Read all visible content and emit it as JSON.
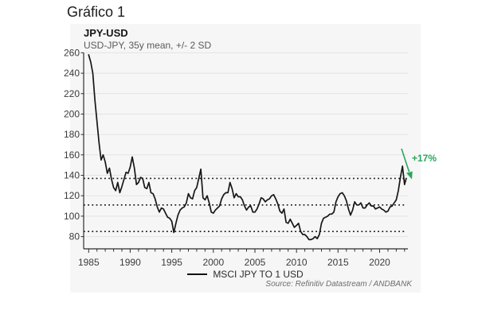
{
  "page_title": "Gráfico 1",
  "chart": {
    "title": "JPY-USD",
    "subtitle": "USD-JPY, 35y mean, +/- 2 SD",
    "legend_label": "MSCI JPY TO 1 USD",
    "source": "Source: Refinitiv Datastream / ANDBANK"
  },
  "chart_data": {
    "type": "line",
    "title": "JPY-USD",
    "subtitle": "USD-JPY, 35y mean, +/- 2 SD",
    "xlabel": "",
    "ylabel": "",
    "xlim": [
      1984.4,
      2023.4
    ],
    "ylim": [
      68,
      265
    ],
    "xticks": [
      1985,
      1990,
      1995,
      2000,
      2005,
      2010,
      2015,
      2020
    ],
    "yticks": [
      80,
      100,
      120,
      140,
      160,
      180,
      200,
      220,
      240,
      260
    ],
    "minor_xtick_start": 1985,
    "minor_xtick_end": 2023,
    "grid": "horizontal",
    "legend_position": "bottom",
    "reference_lines": [
      {
        "label": "+2 SD",
        "value": 137
      },
      {
        "label": "35y mean",
        "value": 111
      },
      {
        "label": "-2 SD",
        "value": 85
      }
    ],
    "annotations": [
      {
        "text": "+17%",
        "x": 2023.2,
        "y": 150,
        "color": "#2aa65c"
      }
    ],
    "series": [
      {
        "name": "MSCI JPY TO 1 USD",
        "color": "#171717",
        "points": [
          [
            1985.0,
            258
          ],
          [
            1985.25,
            251
          ],
          [
            1985.5,
            240
          ],
          [
            1985.75,
            214
          ],
          [
            1986.0,
            193
          ],
          [
            1986.25,
            172
          ],
          [
            1986.5,
            155
          ],
          [
            1986.75,
            160
          ],
          [
            1987.0,
            153
          ],
          [
            1987.25,
            142
          ],
          [
            1987.5,
            147
          ],
          [
            1987.75,
            136
          ],
          [
            1988.0,
            128
          ],
          [
            1988.25,
            125
          ],
          [
            1988.5,
            133
          ],
          [
            1988.75,
            123
          ],
          [
            1989.0,
            129
          ],
          [
            1989.25,
            136
          ],
          [
            1989.5,
            143
          ],
          [
            1989.75,
            142
          ],
          [
            1990.0,
            148
          ],
          [
            1990.25,
            158
          ],
          [
            1990.5,
            147
          ],
          [
            1990.75,
            131
          ],
          [
            1991.0,
            133
          ],
          [
            1991.25,
            138
          ],
          [
            1991.5,
            137
          ],
          [
            1991.75,
            128
          ],
          [
            1992.0,
            127
          ],
          [
            1992.25,
            133
          ],
          [
            1992.5,
            123
          ],
          [
            1992.75,
            122
          ],
          [
            1993.0,
            117
          ],
          [
            1993.25,
            109
          ],
          [
            1993.5,
            104
          ],
          [
            1993.75,
            108
          ],
          [
            1994.0,
            107
          ],
          [
            1994.25,
            103
          ],
          [
            1994.5,
            99
          ],
          [
            1994.75,
            98
          ],
          [
            1995.0,
            95
          ],
          [
            1995.25,
            84
          ],
          [
            1995.5,
            93
          ],
          [
            1995.75,
            101
          ],
          [
            1996.0,
            106
          ],
          [
            1996.25,
            108
          ],
          [
            1996.5,
            109
          ],
          [
            1996.75,
            113
          ],
          [
            1997.0,
            122
          ],
          [
            1997.25,
            118
          ],
          [
            1997.5,
            117
          ],
          [
            1997.75,
            125
          ],
          [
            1998.0,
            128
          ],
          [
            1998.25,
            137
          ],
          [
            1998.5,
            146
          ],
          [
            1998.75,
            118
          ],
          [
            1999.0,
            116
          ],
          [
            1999.25,
            120
          ],
          [
            1999.5,
            113
          ],
          [
            1999.75,
            104
          ],
          [
            2000.0,
            103
          ],
          [
            2000.25,
            106
          ],
          [
            2000.5,
            108
          ],
          [
            2000.75,
            110
          ],
          [
            2001.0,
            117
          ],
          [
            2001.25,
            121
          ],
          [
            2001.5,
            123
          ],
          [
            2001.75,
            123
          ],
          [
            2002.0,
            133
          ],
          [
            2002.25,
            127
          ],
          [
            2002.5,
            118
          ],
          [
            2002.75,
            122
          ],
          [
            2003.0,
            119
          ],
          [
            2003.25,
            119
          ],
          [
            2003.5,
            116
          ],
          [
            2003.75,
            110
          ],
          [
            2004.0,
            106
          ],
          [
            2004.25,
            109
          ],
          [
            2004.5,
            110
          ],
          [
            2004.75,
            104
          ],
          [
            2005.0,
            104
          ],
          [
            2005.25,
            107
          ],
          [
            2005.5,
            112
          ],
          [
            2005.75,
            118
          ],
          [
            2006.0,
            117
          ],
          [
            2006.25,
            114
          ],
          [
            2006.5,
            116
          ],
          [
            2006.75,
            117
          ],
          [
            2007.0,
            120
          ],
          [
            2007.25,
            121
          ],
          [
            2007.5,
            117
          ],
          [
            2007.75,
            112
          ],
          [
            2008.0,
            105
          ],
          [
            2008.25,
            103
          ],
          [
            2008.5,
            107
          ],
          [
            2008.75,
            94
          ],
          [
            2009.0,
            93
          ],
          [
            2009.25,
            97
          ],
          [
            2009.5,
            93
          ],
          [
            2009.75,
            89
          ],
          [
            2010.0,
            91
          ],
          [
            2010.25,
            93
          ],
          [
            2010.5,
            85
          ],
          [
            2010.75,
            82
          ],
          [
            2011.0,
            82
          ],
          [
            2011.25,
            80
          ],
          [
            2011.5,
            77
          ],
          [
            2011.75,
            77
          ],
          [
            2012.0,
            78
          ],
          [
            2012.25,
            80
          ],
          [
            2012.5,
            78
          ],
          [
            2012.75,
            82
          ],
          [
            2013.0,
            93
          ],
          [
            2013.25,
            98
          ],
          [
            2013.5,
            99
          ],
          [
            2013.75,
            100
          ],
          [
            2014.0,
            102
          ],
          [
            2014.25,
            102
          ],
          [
            2014.5,
            104
          ],
          [
            2014.75,
            114
          ],
          [
            2015.0,
            119
          ],
          [
            2015.25,
            122
          ],
          [
            2015.5,
            123
          ],
          [
            2015.75,
            120
          ],
          [
            2016.0,
            115
          ],
          [
            2016.25,
            107
          ],
          [
            2016.5,
            101
          ],
          [
            2016.75,
            106
          ],
          [
            2017.0,
            114
          ],
          [
            2017.25,
            111
          ],
          [
            2017.5,
            111
          ],
          [
            2017.75,
            113
          ],
          [
            2018.0,
            108
          ],
          [
            2018.25,
            108
          ],
          [
            2018.5,
            111
          ],
          [
            2018.75,
            113
          ],
          [
            2019.0,
            110
          ],
          [
            2019.25,
            110
          ],
          [
            2019.5,
            107
          ],
          [
            2019.75,
            108
          ],
          [
            2020.0,
            109
          ],
          [
            2020.25,
            107
          ],
          [
            2020.5,
            106
          ],
          [
            2020.75,
            104
          ],
          [
            2021.0,
            105
          ],
          [
            2021.25,
            109
          ],
          [
            2021.5,
            110
          ],
          [
            2021.75,
            113
          ],
          [
            2022.0,
            116
          ],
          [
            2022.25,
            125
          ],
          [
            2022.5,
            138
          ],
          [
            2022.75,
            149
          ],
          [
            2023.0,
            131
          ],
          [
            2023.2,
            137
          ]
        ]
      }
    ]
  }
}
